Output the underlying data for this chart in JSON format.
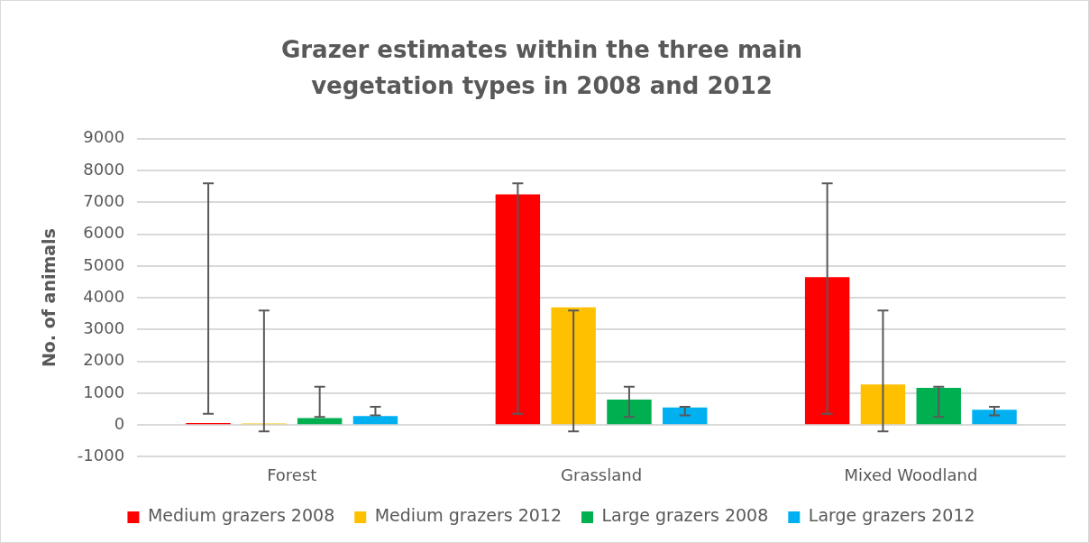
{
  "chart_data": {
    "type": "bar",
    "title": "Grazer estimates within the three main vegetation types in 2008 and 2012",
    "ylabel": "No. of animals",
    "categories": [
      "Forest",
      "Grassland",
      "Mixed Woodland"
    ],
    "series": [
      {
        "name": "Medium grazers 2008",
        "color": "#ff0000",
        "values": [
          60,
          7250,
          4650
        ],
        "errors": [
          [
            350,
            7600
          ],
          [
            350,
            7600
          ],
          [
            350,
            7600
          ]
        ]
      },
      {
        "name": "Medium grazers 2012",
        "color": "#ffc000",
        "values": [
          50,
          3700,
          1270
        ],
        "errors": [
          [
            -200,
            3600
          ],
          [
            -200,
            3600
          ],
          [
            -200,
            3600
          ]
        ]
      },
      {
        "name": "Large grazers 2008",
        "color": "#00b050",
        "values": [
          220,
          800,
          1170
        ],
        "errors": [
          [
            250,
            1200
          ],
          [
            250,
            1200
          ],
          [
            250,
            1200
          ]
        ]
      },
      {
        "name": "Large grazers 2012",
        "color": "#00b0f0",
        "values": [
          280,
          550,
          480
        ],
        "errors": [
          [
            300,
            570
          ],
          [
            300,
            570
          ],
          [
            300,
            570
          ]
        ]
      }
    ],
    "ylim": [
      -1000,
      9000
    ],
    "yticks": [
      -1000,
      0,
      1000,
      2000,
      3000,
      4000,
      5000,
      6000,
      7000,
      8000,
      9000
    ],
    "grid": "y",
    "legend": "bottom"
  }
}
